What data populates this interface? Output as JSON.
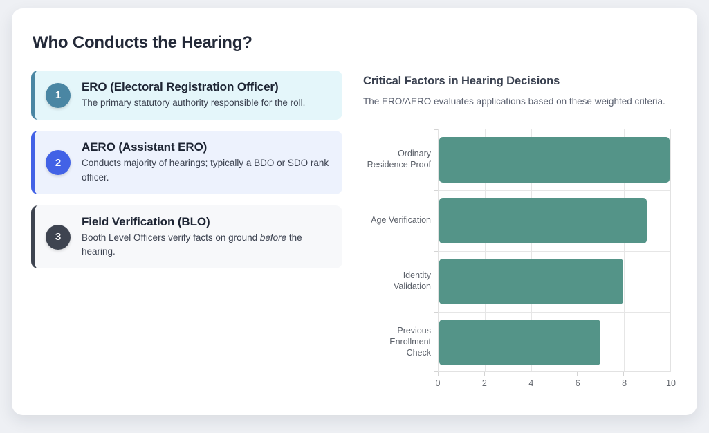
{
  "page": {
    "background": "#eef0f4",
    "card_background": "#ffffff",
    "heading": "Who Conducts the Hearing?",
    "heading_color": "#232938"
  },
  "steps": [
    {
      "number": "1",
      "title": "ERO (Electoral Registration Officer)",
      "desc_parts": [
        {
          "text": "The primary statutory authority responsible for the roll.",
          "italic": false
        }
      ],
      "accent": "#4a86a3",
      "bg": "#e4f6fa"
    },
    {
      "number": "2",
      "title": "AERO (Assistant ERO)",
      "desc_parts": [
        {
          "text": "Conducts majority of hearings; typically a BDO or SDO rank officer.",
          "italic": false
        }
      ],
      "accent": "#4262e6",
      "bg": "#edf2fd"
    },
    {
      "number": "3",
      "title": "Field Verification (BLO)",
      "desc_parts": [
        {
          "text": "Booth Level Officers verify facts on ground ",
          "italic": false
        },
        {
          "text": "before",
          "italic": true
        },
        {
          "text": " the hearing.",
          "italic": false
        }
      ],
      "accent": "#3e4450",
      "bg": "#f7f8fa"
    }
  ],
  "chart": {
    "title": "Critical Factors in Hearing Decisions",
    "subtitle": "The ERO/AERO evaluates applications based on these weighted criteria."
  },
  "chart_data": {
    "type": "bar",
    "orientation": "horizontal",
    "title": "Critical Factors in Hearing Decisions",
    "categories": [
      "Ordinary Residence Proof",
      "Age Verification",
      "Identity Validation",
      "Previous Enrollment Check"
    ],
    "label_lines": [
      [
        "Ordinary",
        "Residence Proof"
      ],
      [
        "Age Verification"
      ],
      [
        "Identity",
        "Validation"
      ],
      [
        "Previous",
        "Enrollment Check"
      ]
    ],
    "values": [
      10,
      9,
      8,
      7
    ],
    "xlabel": "",
    "ylabel": "",
    "xlim": [
      0,
      10
    ],
    "xticks": [
      0,
      2,
      4,
      6,
      8,
      10
    ],
    "bar_color": "#549488",
    "grid": true,
    "legend": false
  }
}
